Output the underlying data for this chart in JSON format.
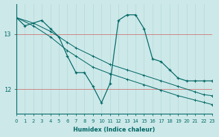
{
  "xlabel": "Humidex (Indice chaleur)",
  "background_color": "#cce8e8",
  "grid_h_color": "#d08080",
  "grid_v_color": "#b8dada",
  "line_color": "#006666",
  "xlim": [
    0,
    23
  ],
  "ylim": [
    11.55,
    13.55
  ],
  "yticks": [
    12,
    13
  ],
  "xticks": [
    0,
    1,
    2,
    3,
    4,
    5,
    6,
    7,
    8,
    9,
    10,
    11,
    12,
    13,
    14,
    15,
    16,
    17,
    18,
    19,
    20,
    21,
    22,
    23
  ],
  "series": [
    {
      "x": [
        0,
        1,
        3,
        4,
        5,
        6,
        7,
        8,
        9,
        10,
        11,
        12,
        13,
        14,
        15,
        16,
        17,
        18,
        19,
        20,
        21,
        22,
        23
      ],
      "y": [
        13.3,
        13.15,
        13.25,
        13.1,
        12.95,
        12.6,
        12.3,
        12.3,
        12.05,
        11.75,
        12.1,
        13.25,
        13.35,
        13.35,
        13.1,
        12.55,
        12.5,
        12.35,
        12.2,
        12.15,
        12.15,
        12.15,
        12.15
      ]
    },
    {
      "x": [
        0,
        2,
        4,
        6,
        7,
        9,
        11,
        13,
        15,
        17,
        19,
        21,
        22,
        23
      ],
      "y": [
        13.3,
        13.2,
        13.05,
        12.85,
        12.75,
        12.6,
        12.45,
        12.35,
        12.25,
        12.15,
        12.05,
        11.95,
        11.9,
        11.88
      ]
    },
    {
      "x": [
        0,
        2,
        4,
        6,
        7,
        9,
        11,
        13,
        15,
        17,
        19,
        21,
        22,
        23
      ],
      "y": [
        13.3,
        13.15,
        12.95,
        12.7,
        12.6,
        12.4,
        12.28,
        12.18,
        12.08,
        11.98,
        11.88,
        11.8,
        11.76,
        11.72
      ]
    }
  ]
}
